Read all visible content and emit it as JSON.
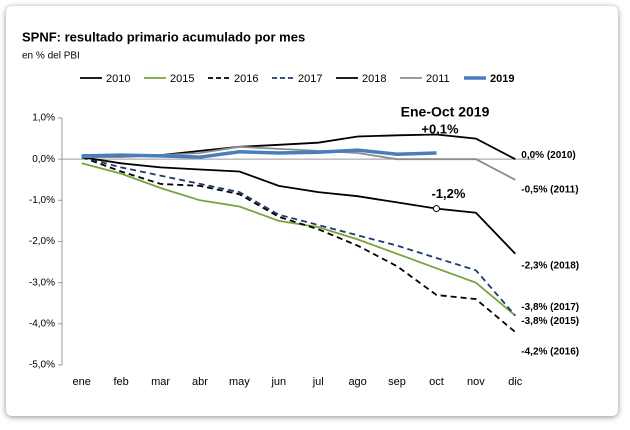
{
  "chart_data": {
    "type": "line",
    "title": "SPNF: resultado primario acumulado por mes",
    "subtitle": "en % del PBI",
    "categories": [
      "ene",
      "feb",
      "mar",
      "abr",
      "may",
      "jun",
      "jul",
      "ago",
      "sep",
      "oct",
      "nov",
      "dic"
    ],
    "ylim": [
      -5,
      1
    ],
    "yticks": [
      {
        "value": 1,
        "label": "1,0%"
      },
      {
        "value": 0,
        "label": "0,0%"
      },
      {
        "value": -1,
        "label": "-1,0%"
      },
      {
        "value": -2,
        "label": "-2,0%"
      },
      {
        "value": -3,
        "label": "-3,0%"
      },
      {
        "value": -4,
        "label": "-4,0%"
      },
      {
        "value": -5,
        "label": "-5,0%"
      }
    ],
    "series": [
      {
        "name": "2010",
        "color": "#000000",
        "dash": false,
        "values": [
          0.05,
          0.1,
          0.1,
          0.2,
          0.3,
          0.35,
          0.4,
          0.55,
          0.58,
          0.6,
          0.5,
          0.0
        ],
        "end_label": "0,0% (2010)",
        "end_label_color": "#000000"
      },
      {
        "name": "2015",
        "color": "#7aa33b",
        "dash": false,
        "values": [
          -0.1,
          -0.35,
          -0.7,
          -1.0,
          -1.15,
          -1.5,
          -1.65,
          -1.95,
          -2.3,
          -2.65,
          -3.0,
          -3.8
        ],
        "end_label": "-3,8% (2015)",
        "end_label_color": "#808080"
      },
      {
        "name": "2016",
        "color": "#000000",
        "dash": true,
        "values": [
          0.05,
          -0.3,
          -0.6,
          -0.65,
          -0.85,
          -1.4,
          -1.7,
          -2.1,
          -2.6,
          -3.3,
          -3.4,
          -4.2
        ],
        "end_label": "-4,2% (2016)",
        "end_label_color": "#1f3a6e"
      },
      {
        "name": "2017",
        "color": "#1f3a6e",
        "dash": true,
        "values": [
          0.05,
          -0.2,
          -0.4,
          -0.6,
          -0.8,
          -1.35,
          -1.6,
          -1.85,
          -2.1,
          -2.4,
          -2.7,
          -3.8
        ],
        "end_label": "-3,8% (2017)",
        "end_label_color": "#4a7ebb"
      },
      {
        "name": "2018",
        "color": "#000000",
        "dash": false,
        "values": [
          0.05,
          -0.1,
          -0.2,
          -0.25,
          -0.3,
          -0.65,
          -0.8,
          -0.9,
          -1.05,
          -1.2,
          -1.3,
          -2.3
        ],
        "end_label": "-2,3% (2018)",
        "end_label_color": "#000000"
      },
      {
        "name": "2011",
        "color": "#8c8c8c",
        "dash": false,
        "values": [
          0.05,
          0.05,
          0.1,
          0.15,
          0.3,
          0.25,
          0.2,
          0.15,
          0.0,
          0.0,
          0.0,
          -0.5
        ],
        "end_label": "-0,5% (2011)",
        "end_label_color": "#808080"
      },
      {
        "name": "2019",
        "color": "#4a7ebb",
        "dash": false,
        "values": [
          0.08,
          0.1,
          0.08,
          0.05,
          0.18,
          0.15,
          0.17,
          0.22,
          0.12,
          0.15,
          null,
          null
        ]
      }
    ],
    "annotations": [
      "Ene-Oct 2019",
      "+0,1%",
      "-1,2%"
    ]
  }
}
